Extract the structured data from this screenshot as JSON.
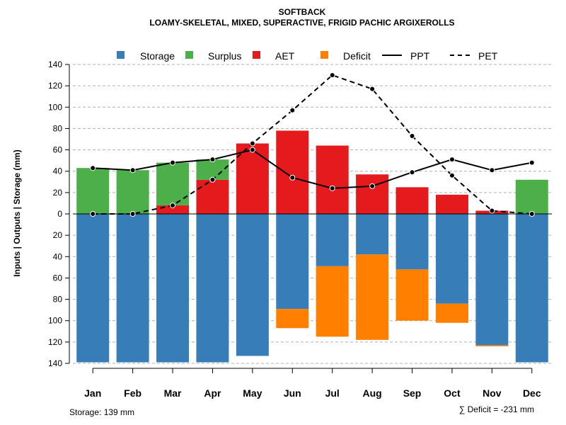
{
  "chart_data": {
    "type": "bar",
    "title": "SOFTBACK",
    "subtitle": "LOAMY-SKELETAL, MIXED, SUPERACTIVE, FRIGID PACHIC ARGIXEROLLS",
    "ylabel": "Inputs | Outputs | Storage    (mm)",
    "ylim": [
      -140,
      140
    ],
    "y_ticks": [
      140,
      120,
      100,
      80,
      60,
      40,
      20,
      0,
      -20,
      -40,
      -60,
      -80,
      -100,
      -120,
      -140
    ],
    "y_tick_labels": [
      "140",
      "120",
      "100",
      "80",
      "60",
      "40",
      "20",
      "0",
      "20",
      "40",
      "60",
      "80",
      "100",
      "120",
      "140"
    ],
    "categories": [
      "Jan",
      "Feb",
      "Mar",
      "Apr",
      "May",
      "Jun",
      "Jul",
      "Aug",
      "Sep",
      "Oct",
      "Nov",
      "Dec"
    ],
    "legend": {
      "storage": "Storage",
      "surplus": "Surplus",
      "aet": "AET",
      "deficit": "Deficit",
      "ppt": "PPT",
      "pet": "PET"
    },
    "colors": {
      "storage": "#377EB8",
      "surplus": "#4DAF4A",
      "aet": "#E41A1C",
      "deficit": "#FF7F00",
      "ppt": "#000000",
      "pet": "#000000"
    },
    "series": [
      {
        "name": "Storage",
        "values": [
          139,
          139,
          139,
          139,
          133,
          89,
          49,
          38,
          52,
          84,
          123,
          139
        ]
      },
      {
        "name": "Deficit",
        "values": [
          0,
          0,
          0,
          0,
          0,
          18,
          66,
          80,
          48,
          18,
          1,
          0
        ]
      },
      {
        "name": "AET",
        "values": [
          0,
          0,
          8,
          32,
          66,
          78,
          64,
          37,
          25,
          18,
          3,
          0
        ]
      },
      {
        "name": "Surplus",
        "values": [
          43,
          41,
          40,
          19,
          0,
          0,
          0,
          0,
          0,
          0,
          0,
          32
        ]
      },
      {
        "name": "PPT",
        "values": [
          43,
          41,
          48,
          51,
          60,
          34,
          24,
          26,
          39,
          51,
          41,
          48
        ]
      },
      {
        "name": "PET",
        "values": [
          0,
          0,
          8,
          32,
          66,
          97,
          130,
          117,
          73,
          36,
          3,
          0
        ]
      }
    ],
    "grid": true,
    "legend_position": "top",
    "footnote_left": "Storage: 139 mm",
    "footnote_right": "∑ Deficit = -231 mm"
  }
}
